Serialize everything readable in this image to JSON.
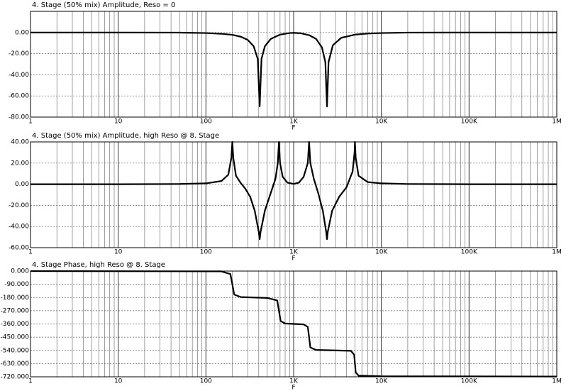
{
  "chart_data": [
    {
      "type": "line",
      "title": "4. Stage (50% mix) Amplitude, Reso = 0",
      "xlabel": "F",
      "log_x": true,
      "grid": true,
      "color": "#000000",
      "xlim": [
        1,
        1000000
      ],
      "xticks": [
        1,
        10,
        100,
        {
          "value": 1000,
          "label": "1K"
        },
        {
          "value": 10000,
          "label": "10K"
        },
        {
          "value": 100000,
          "label": "100K"
        },
        {
          "value": 1000000,
          "label": "1M"
        }
      ],
      "ylim": [
        -80,
        20
      ],
      "yticks": [
        {
          "value": 0,
          "label": "0.00"
        },
        {
          "value": -20,
          "label": "-20.00"
        },
        {
          "value": -40,
          "label": "-40.00"
        },
        {
          "value": -60,
          "label": "-60.00"
        },
        {
          "value": -80,
          "label": "-80.00"
        }
      ],
      "x": [
        1,
        10,
        50,
        100,
        150,
        200,
        250,
        300,
        350,
        390,
        410,
        430,
        470,
        550,
        700,
        900,
        1000,
        1200,
        1500,
        1800,
        2100,
        2300,
        2400,
        2500,
        2800,
        3500,
        5000,
        7000,
        10000,
        20000,
        100000,
        1000000
      ],
      "values": [
        0,
        0,
        -0.1,
        -0.5,
        -1.2,
        -2.2,
        -4,
        -7,
        -13,
        -25,
        -70,
        -25,
        -13,
        -6,
        -2,
        -0.5,
        -0.3,
        -0.7,
        -2.5,
        -6,
        -14,
        -28,
        -70,
        -28,
        -12,
        -5,
        -2,
        -1,
        -0.5,
        -0.1,
        0,
        0
      ]
    },
    {
      "type": "line",
      "title": "4. Stage (50% mix) Amplitude, high Reso @ 8. Stage",
      "xlabel": "F",
      "log_x": true,
      "grid": true,
      "color": "#000000",
      "xlim": [
        1,
        1000000
      ],
      "xticks": [
        1,
        10,
        100,
        {
          "value": 1000,
          "label": "1K"
        },
        {
          "value": 10000,
          "label": "10K"
        },
        {
          "value": 100000,
          "label": "100K"
        },
        {
          "value": 1000000,
          "label": "1M"
        }
      ],
      "ylim": [
        -60,
        40
      ],
      "yticks": [
        {
          "value": 40,
          "label": "40.00"
        },
        {
          "value": 20,
          "label": "20.00"
        },
        {
          "value": 0,
          "label": "0.00"
        },
        {
          "value": -20,
          "label": "-20.00"
        },
        {
          "value": -40,
          "label": "-40.00"
        },
        {
          "value": -60,
          "label": "-60.00"
        }
      ],
      "x": [
        1,
        10,
        50,
        100,
        150,
        180,
        195,
        200,
        205,
        220,
        250,
        280,
        320,
        360,
        400,
        410,
        420,
        470,
        550,
        620,
        660,
        680,
        700,
        750,
        850,
        1000,
        1150,
        1300,
        1450,
        1500,
        1550,
        1700,
        1900,
        2150,
        2350,
        2400,
        2450,
        2750,
        3300,
        4000,
        4700,
        4950,
        5000,
        5100,
        5500,
        7000,
        10000,
        20000,
        100000,
        1000000
      ],
      "values": [
        0,
        0,
        0.2,
        0.8,
        3,
        9,
        25,
        40,
        25,
        8,
        1,
        -4,
        -12,
        -25,
        -45,
        -52,
        -45,
        -25,
        -8,
        5,
        20,
        40,
        20,
        7,
        1.5,
        0.3,
        1.5,
        7,
        20,
        40,
        20,
        5,
        -8,
        -25,
        -45,
        -52,
        -45,
        -25,
        -12,
        -3,
        12,
        30,
        40,
        25,
        8,
        2,
        0.8,
        0.2,
        0,
        0
      ]
    },
    {
      "type": "line",
      "title": "4. Stage Phase, high Reso @ 8. Stage",
      "xlabel": "F",
      "log_x": true,
      "grid": true,
      "color": "#000000",
      "xlim": [
        1,
        1000000
      ],
      "xticks": [
        1,
        10,
        100,
        {
          "value": 1000,
          "label": "1K"
        },
        {
          "value": 10000,
          "label": "10K"
        },
        {
          "value": 100000,
          "label": "100K"
        },
        {
          "value": 1000000,
          "label": "1M"
        }
      ],
      "ylim": [
        -720,
        0
      ],
      "yticks": [
        {
          "value": 0,
          "label": "0.000"
        },
        {
          "value": -90,
          "label": "-90.000"
        },
        {
          "value": -180,
          "label": "-180.000"
        },
        {
          "value": -270,
          "label": "-270.000"
        },
        {
          "value": -360,
          "label": "-360.000"
        },
        {
          "value": -450,
          "label": "-450.000"
        },
        {
          "value": -540,
          "label": "-540.000"
        },
        {
          "value": -630,
          "label": "-630.000"
        },
        {
          "value": -720,
          "label": "-720.000"
        }
      ],
      "x": [
        1,
        150,
        190,
        200,
        210,
        250,
        500,
        650,
        680,
        710,
        800,
        1300,
        1450,
        1500,
        1550,
        1800,
        4500,
        4900,
        5000,
        5100,
        5500,
        10000,
        1000000
      ],
      "values": [
        0,
        -2,
        -20,
        -90,
        -160,
        -177,
        -183,
        -200,
        -270,
        -340,
        -357,
        -363,
        -380,
        -450,
        -520,
        -537,
        -543,
        -570,
        -630,
        -690,
        -712,
        -716,
        -718
      ]
    }
  ]
}
